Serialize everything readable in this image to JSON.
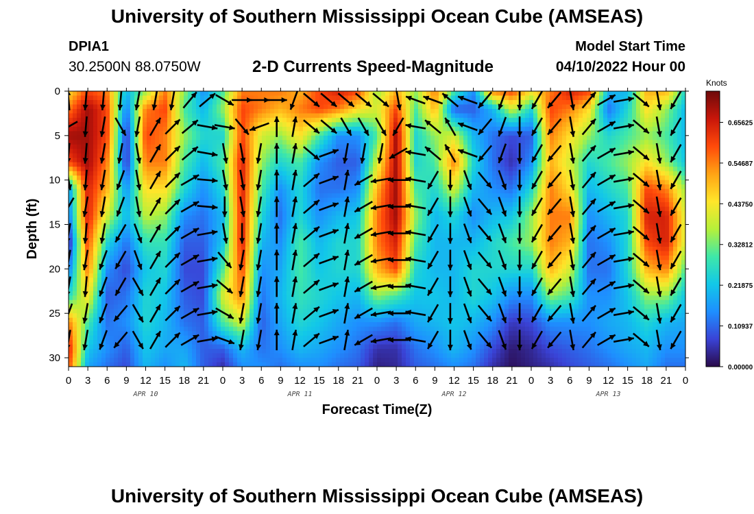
{
  "header": {
    "title": "University of Southern Mississippi Ocean Cube (AMSEAS)",
    "station_id": "DPIA1",
    "station_coords": "30.2500N  88.0750W",
    "start_label": "Model Start Time",
    "start_value": "04/10/2022 Hour 00"
  },
  "footer": {
    "title": "University of Southern Mississippi Ocean Cube (AMSEAS)"
  },
  "chart_data": {
    "type": "heatmap",
    "title": "2-D Currents Speed-Magnitude",
    "xlabel": "Forecast Time(Z)",
    "ylabel": "Depth (ft)",
    "xlim": [
      0,
      96
    ],
    "ylim": [
      31,
      0
    ],
    "x_tick_values": [
      0,
      3,
      6,
      9,
      12,
      15,
      18,
      21,
      24,
      27,
      30,
      33,
      36,
      39,
      42,
      45,
      48,
      51,
      54,
      57,
      60,
      63,
      66,
      69,
      72,
      75,
      78,
      81,
      84,
      87,
      90,
      93,
      96
    ],
    "x_tick_labels": [
      "0",
      "3",
      "6",
      "9",
      "12",
      "15",
      "18",
      "21",
      "0",
      "3",
      "6",
      "9",
      "12",
      "15",
      "18",
      "21",
      "0",
      "3",
      "6",
      "9",
      "12",
      "15",
      "18",
      "21",
      "0",
      "3",
      "6",
      "9",
      "12",
      "15",
      "18",
      "21",
      "0"
    ],
    "y_tick_values": [
      0,
      5,
      10,
      15,
      20,
      25,
      30
    ],
    "y_tick_labels": [
      "0",
      "5",
      "10",
      "15",
      "20",
      "25",
      "30"
    ],
    "dates": [
      {
        "label": "APR 10",
        "x": 12
      },
      {
        "label": "APR 11",
        "x": 36
      },
      {
        "label": "APR 12",
        "x": 60
      },
      {
        "label": "APR 13",
        "x": 84
      }
    ],
    "colorbar": {
      "unit": "Knots",
      "min": 0,
      "max": 0.74,
      "tick_values": [
        0,
        0.109375,
        0.21875,
        0.328125,
        0.4375,
        0.546875,
        0.65625
      ],
      "tick_labels": [
        "0.00000",
        "0.10937",
        "0.21875",
        "0.32812",
        "0.43750",
        "0.54687",
        "0.65625"
      ],
      "colors": [
        "#2a0a4a",
        "#3a43d6",
        "#1e8fff",
        "#12c8e8",
        "#3fe8a8",
        "#b6f03a",
        "#ffe52a",
        "#ffa314",
        "#ff4a0a",
        "#c8160a",
        "#6e0a0a"
      ]
    },
    "times": [
      0,
      3,
      6,
      9,
      12,
      15,
      18,
      21,
      24,
      27,
      30,
      33,
      36,
      39,
      42,
      45,
      48,
      51,
      54,
      57,
      60,
      63,
      66,
      69,
      72,
      75,
      78,
      81,
      84,
      87,
      90,
      93,
      96
    ],
    "depths": [
      0,
      2,
      5,
      8,
      11,
      14,
      17,
      20,
      23,
      26,
      29,
      31
    ],
    "speed": [
      [
        0.45,
        0.55,
        0.7,
        0.6,
        0.15,
        0.12,
        0.02,
        0.12,
        0.25,
        0.55,
        0.65,
        0.6
      ],
      [
        0.6,
        0.7,
        0.7,
        0.7,
        0.65,
        0.65,
        0.6,
        0.55,
        0.45,
        0.3,
        0.22,
        0.18
      ],
      [
        0.55,
        0.6,
        0.6,
        0.55,
        0.5,
        0.4,
        0.25,
        0.15,
        0.1,
        0.12,
        0.15,
        0.12
      ],
      [
        0.2,
        0.12,
        0.05,
        0.05,
        0.15,
        0.2,
        0.12,
        0.08,
        0.12,
        0.15,
        0.1,
        0.08
      ],
      [
        0.35,
        0.55,
        0.6,
        0.55,
        0.45,
        0.38,
        0.28,
        0.22,
        0.25,
        0.25,
        0.22,
        0.2
      ],
      [
        0.55,
        0.6,
        0.55,
        0.55,
        0.45,
        0.35,
        0.28,
        0.25,
        0.22,
        0.2,
        0.18,
        0.15
      ],
      [
        0.35,
        0.3,
        0.35,
        0.3,
        0.25,
        0.15,
        0.1,
        0.08,
        0.1,
        0.12,
        0.18,
        0.2
      ],
      [
        0.15,
        0.2,
        0.25,
        0.2,
        0.15,
        0.12,
        0.1,
        0.08,
        0.08,
        0.1,
        0.1,
        0.1
      ],
      [
        0.3,
        0.35,
        0.25,
        0.3,
        0.25,
        0.2,
        0.22,
        0.3,
        0.4,
        0.3,
        0.1,
        0.05
      ],
      [
        0.55,
        0.6,
        0.6,
        0.65,
        0.65,
        0.65,
        0.65,
        0.6,
        0.55,
        0.4,
        0.2,
        0.15
      ],
      [
        0.55,
        0.55,
        0.4,
        0.35,
        0.3,
        0.25,
        0.2,
        0.15,
        0.12,
        0.1,
        0.12,
        0.15
      ],
      [
        0.55,
        0.5,
        0.35,
        0.25,
        0.15,
        0.12,
        0.15,
        0.18,
        0.2,
        0.18,
        0.15,
        0.12
      ],
      [
        0.5,
        0.55,
        0.45,
        0.3,
        0.25,
        0.25,
        0.3,
        0.3,
        0.28,
        0.25,
        0.2,
        0.15
      ],
      [
        0.6,
        0.6,
        0.3,
        0.15,
        0.12,
        0.15,
        0.2,
        0.22,
        0.25,
        0.22,
        0.18,
        0.15
      ],
      [
        0.65,
        0.55,
        0.15,
        0.1,
        0.12,
        0.2,
        0.25,
        0.25,
        0.22,
        0.18,
        0.15,
        0.12
      ],
      [
        0.6,
        0.45,
        0.15,
        0.1,
        0.15,
        0.22,
        0.25,
        0.25,
        0.2,
        0.15,
        0.12,
        0.1
      ],
      [
        0.35,
        0.4,
        0.3,
        0.4,
        0.5,
        0.55,
        0.55,
        0.5,
        0.35,
        0.15,
        0.05,
        0.03
      ],
      [
        0.5,
        0.6,
        0.7,
        0.7,
        0.7,
        0.7,
        0.65,
        0.6,
        0.3,
        0.12,
        0.05,
        0.04
      ],
      [
        0.35,
        0.3,
        0.25,
        0.25,
        0.3,
        0.35,
        0.3,
        0.25,
        0.22,
        0.18,
        0.12,
        0.1
      ],
      [
        0.55,
        0.5,
        0.35,
        0.3,
        0.25,
        0.2,
        0.2,
        0.2,
        0.22,
        0.2,
        0.15,
        0.12
      ],
      [
        0.3,
        0.1,
        0.4,
        0.55,
        0.4,
        0.25,
        0.2,
        0.2,
        0.2,
        0.22,
        0.2,
        0.15
      ],
      [
        0.15,
        0.1,
        0.2,
        0.25,
        0.2,
        0.15,
        0.2,
        0.25,
        0.25,
        0.2,
        0.15,
        0.12
      ],
      [
        0.55,
        0.2,
        0.12,
        0.12,
        0.15,
        0.2,
        0.25,
        0.25,
        0.22,
        0.15,
        0.08,
        0.05
      ],
      [
        0.6,
        0.4,
        0.08,
        0.05,
        0.12,
        0.22,
        0.3,
        0.25,
        0.15,
        0.06,
        0.02,
        0.01
      ],
      [
        0.45,
        0.25,
        0.1,
        0.15,
        0.25,
        0.35,
        0.35,
        0.25,
        0.15,
        0.08,
        0.04,
        0.03
      ],
      [
        0.55,
        0.6,
        0.55,
        0.5,
        0.55,
        0.55,
        0.55,
        0.5,
        0.35,
        0.15,
        0.08,
        0.05
      ],
      [
        0.65,
        0.55,
        0.45,
        0.4,
        0.45,
        0.55,
        0.5,
        0.4,
        0.3,
        0.15,
        0.1,
        0.08
      ],
      [
        0.6,
        0.45,
        0.35,
        0.25,
        0.2,
        0.15,
        0.12,
        0.12,
        0.15,
        0.15,
        0.12,
        0.1
      ],
      [
        0.2,
        0.12,
        0.25,
        0.3,
        0.25,
        0.2,
        0.15,
        0.12,
        0.15,
        0.18,
        0.15,
        0.12
      ],
      [
        0.2,
        0.25,
        0.3,
        0.35,
        0.3,
        0.25,
        0.25,
        0.25,
        0.22,
        0.2,
        0.18,
        0.15
      ],
      [
        0.5,
        0.45,
        0.35,
        0.45,
        0.6,
        0.65,
        0.6,
        0.5,
        0.35,
        0.25,
        0.2,
        0.18
      ],
      [
        0.5,
        0.35,
        0.3,
        0.35,
        0.55,
        0.65,
        0.65,
        0.55,
        0.35,
        0.2,
        0.15,
        0.12
      ],
      [
        0.25,
        0.2,
        0.2,
        0.22,
        0.35,
        0.4,
        0.4,
        0.3,
        0.22,
        0.18,
        0.15,
        0.12
      ]
    ],
    "arrow_grid": {
      "times": [
        0,
        2.7,
        5.4,
        8.1,
        10.8,
        13.5,
        16.2,
        18.9,
        21.6,
        24.3,
        27,
        29.7,
        32.4,
        35.1,
        37.8,
        40.5,
        43.2,
        45.9,
        48.6,
        51.3,
        54,
        56.7,
        59.4,
        62.1,
        64.8,
        67.5,
        70.2,
        72.9,
        75.6,
        78.3,
        81,
        83.7,
        86.4,
        89.1,
        91.8,
        94.5
      ],
      "depths": [
        1,
        4,
        7,
        10,
        13,
        16,
        19,
        22,
        25,
        28
      ],
      "angles_deg": [
        [
          95,
          -150,
          -95,
          -80,
          -120,
          -100,
          -100,
          -100,
          -110,
          -100
        ],
        [
          -95,
          -95,
          -95,
          -95,
          -100,
          -95,
          -100,
          -95,
          -100,
          -100
        ],
        [
          -95,
          -100,
          -100,
          -100,
          -100,
          -100,
          -110,
          -110,
          -110,
          -110
        ],
        [
          -95,
          -60,
          -100,
          -110,
          -110,
          -120,
          -120,
          -120,
          -130,
          -130
        ],
        [
          -100,
          -100,
          -80,
          -80,
          -80,
          -70,
          -70,
          -60,
          -60,
          -60
        ],
        [
          -100,
          60,
          60,
          60,
          60,
          60,
          60,
          60,
          60,
          60
        ],
        [
          -100,
          45,
          45,
          45,
          45,
          45,
          45,
          45,
          45,
          45
        ],
        [
          50,
          40,
          40,
          30,
          30,
          30,
          30,
          30,
          30,
          30
        ],
        [
          40,
          -10,
          -10,
          -5,
          -5,
          10,
          10,
          10,
          10,
          10
        ],
        [
          -30,
          -10,
          -80,
          -80,
          -90,
          -80,
          -50,
          -40,
          -30,
          -20
        ],
        [
          0,
          -50,
          -80,
          -80,
          -80,
          -90,
          -100,
          -100,
          -100,
          -100
        ],
        [
          0,
          -160,
          -100,
          -100,
          -100,
          -100,
          -100,
          -100,
          -100,
          -100
        ],
        [
          0,
          90,
          90,
          90,
          90,
          90,
          90,
          90,
          90,
          90
        ],
        [
          -110,
          80,
          80,
          80,
          80,
          80,
          80,
          80,
          80,
          80
        ],
        [
          -40,
          -40,
          -40,
          40,
          40,
          40,
          40,
          40,
          40,
          40
        ],
        [
          -40,
          -40,
          20,
          20,
          20,
          20,
          20,
          20,
          20,
          20
        ],
        [
          -40,
          -60,
          -100,
          80,
          80,
          80,
          80,
          80,
          80,
          80
        ],
        [
          -40,
          -60,
          -100,
          -150,
          -150,
          -150,
          -150,
          -150,
          -150,
          -150
        ],
        [
          -40,
          -60,
          -100,
          -170,
          -170,
          -170,
          -170,
          -170,
          -170,
          -170
        ],
        [
          -80,
          -120,
          -150,
          -180,
          -180,
          -180,
          -180,
          -180,
          -180,
          -180
        ],
        [
          160,
          170,
          170,
          170,
          170,
          170,
          170,
          170,
          170,
          170
        ],
        [
          160,
          140,
          140,
          -120,
          -120,
          -120,
          -120,
          -120,
          -120,
          -120
        ],
        [
          140,
          120,
          120,
          -90,
          -90,
          -90,
          -90,
          -90,
          -90,
          -90
        ],
        [
          160,
          160,
          160,
          -70,
          -70,
          -70,
          -70,
          -70,
          -70,
          -70
        ],
        [
          -130,
          -130,
          -130,
          -50,
          -50,
          -50,
          -50,
          -50,
          -50,
          -50
        ],
        [
          -110,
          -110,
          -110,
          -70,
          -70,
          -70,
          -70,
          -70,
          -70,
          -70
        ],
        [
          -90,
          -90,
          -90,
          -90,
          -90,
          -90,
          -90,
          -90,
          -90,
          -90
        ],
        [
          -120,
          -120,
          -120,
          -120,
          -120,
          -120,
          -120,
          -120,
          -120,
          -120
        ],
        [
          -130,
          -130,
          -130,
          -130,
          -130,
          -130,
          -130,
          -130,
          -130,
          -130
        ],
        [
          -80,
          -80,
          -80,
          -80,
          -80,
          -80,
          -80,
          -80,
          -80,
          -80
        ],
        [
          50,
          50,
          50,
          50,
          50,
          50,
          50,
          50,
          50,
          50
        ],
        [
          30,
          30,
          30,
          30,
          30,
          30,
          30,
          30,
          30,
          30
        ],
        [
          10,
          10,
          10,
          10,
          10,
          10,
          10,
          10,
          10,
          10
        ],
        [
          -40,
          -40,
          -40,
          -40,
          -40,
          -40,
          -40,
          -40,
          -40,
          -40
        ],
        [
          -80,
          -80,
          -80,
          -80,
          -80,
          -80,
          -80,
          -80,
          -80,
          -80
        ],
        [
          -120,
          -120,
          -120,
          -120,
          -120,
          -120,
          -120,
          -120,
          -120,
          -120
        ]
      ]
    }
  }
}
